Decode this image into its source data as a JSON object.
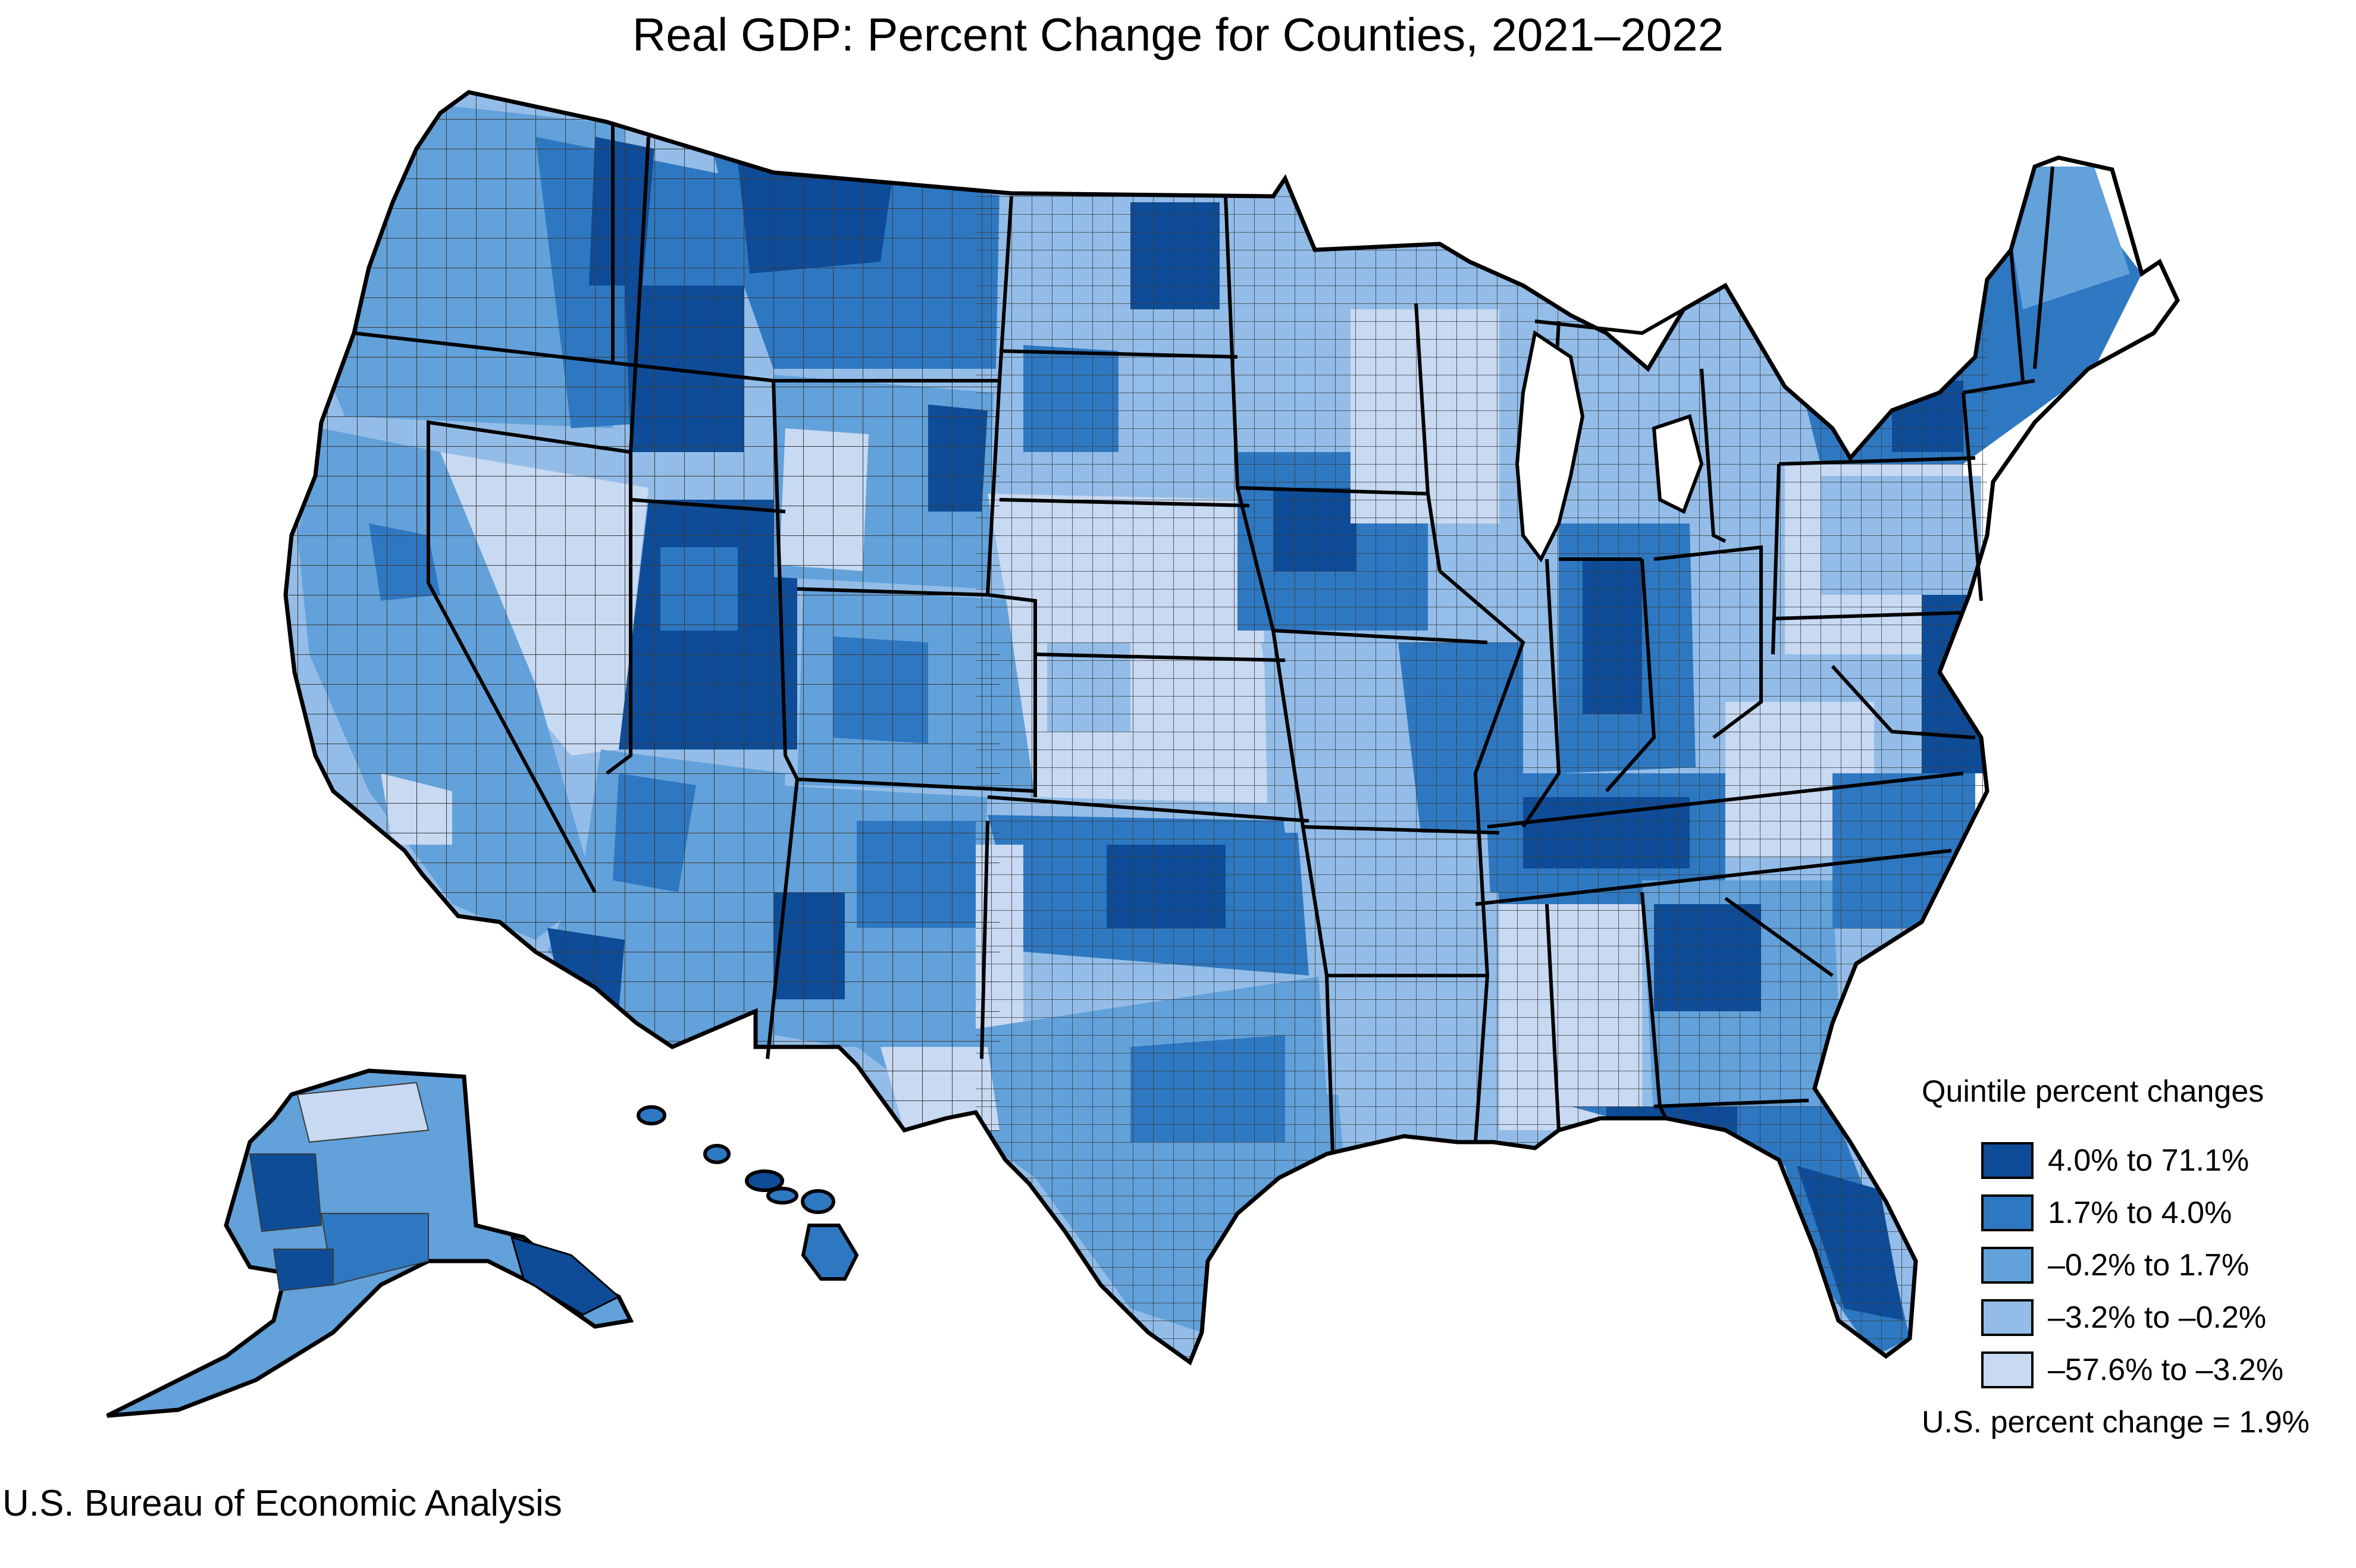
{
  "title": "Real GDP: Percent Change for Counties, 2021–2022",
  "source": "U.S. Bureau of Economic Analysis",
  "legend": {
    "title": "Quintile percent changes",
    "items": [
      {
        "label": "4.0% to 71.1%",
        "color": "#0e4c98"
      },
      {
        "label": "1.7% to 4.0%",
        "color": "#2e78c2"
      },
      {
        "label": "–0.2% to 1.7%",
        "color": "#62a1da"
      },
      {
        "label": "–3.2% to –0.2%",
        "color": "#93bde8"
      },
      {
        "label": "–57.6% to –3.2%",
        "color": "#c8d9f2"
      }
    ],
    "us_note": "U.S. percent change = 1.9%"
  },
  "colors": {
    "border": "#000000",
    "county_border": "#3a3a3a",
    "background": "#ffffff"
  },
  "chart_data": {
    "type": "choropleth",
    "classes": [
      {
        "range": [
          4.0,
          71.1
        ],
        "color": "#0e4c98"
      },
      {
        "range": [
          1.7,
          4.0
        ],
        "color": "#2e78c2"
      },
      {
        "range": [
          -0.2,
          1.7
        ],
        "color": "#62a1da"
      },
      {
        "range": [
          -3.2,
          -0.2
        ],
        "color": "#93bde8"
      },
      {
        "range": [
          -57.6,
          -3.2
        ],
        "color": "#c8d9f2"
      }
    ],
    "us_value": 1.9
  }
}
